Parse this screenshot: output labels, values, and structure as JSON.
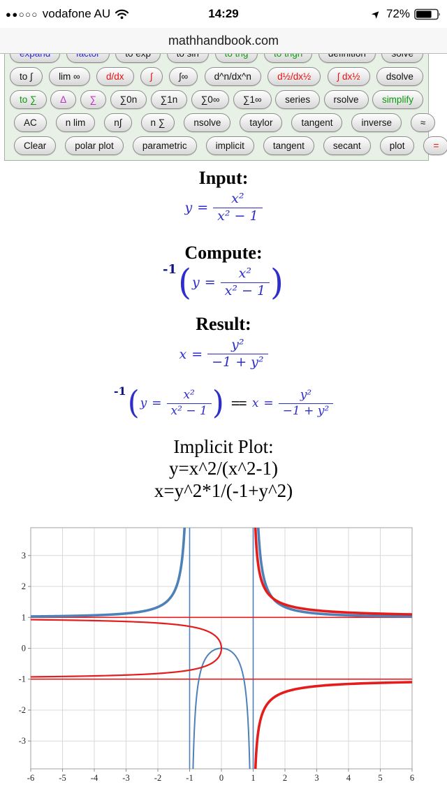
{
  "status_bar": {
    "signal_dots": "••ooo",
    "carrier": "vodafone AU",
    "time": "14:29",
    "battery_percent": "72%",
    "icons": {
      "wifi": "wifi-icon",
      "location": "location-arrow-icon",
      "battery": "battery-icon"
    }
  },
  "url_bar": {
    "title": "mathhandbook.com"
  },
  "toolbar": {
    "rows": [
      {
        "justify": "spread",
        "buttons": [
          {
            "label": "expand",
            "color": "blue"
          },
          {
            "label": "factor",
            "color": "blue"
          },
          {
            "label": "to exp",
            "color": "black"
          },
          {
            "label": "to sin",
            "color": "black"
          },
          {
            "label": "to trig",
            "color": "green"
          },
          {
            "label": "to trigh",
            "color": "green"
          },
          {
            "label": "definition",
            "color": "black"
          },
          {
            "label": "solve",
            "color": "black"
          }
        ]
      },
      {
        "justify": "spread",
        "buttons": [
          {
            "label": "to ∫",
            "color": "black"
          },
          {
            "label": "lim ∞",
            "color": "black"
          },
          {
            "label": "d/dx",
            "color": "red"
          },
          {
            "label": "∫",
            "color": "red"
          },
          {
            "label": "∫∞",
            "color": "black"
          },
          {
            "label": "d^n/dx^n",
            "color": "black"
          },
          {
            "label": "d½/dx½",
            "color": "red"
          },
          {
            "label": "∫ dx½",
            "color": "red"
          },
          {
            "label": "dsolve",
            "color": "black"
          }
        ]
      },
      {
        "justify": "spread",
        "buttons": [
          {
            "label": "to ∑",
            "color": "green"
          },
          {
            "label": "Δ",
            "color": "magenta"
          },
          {
            "label": "∑",
            "color": "magenta"
          },
          {
            "label": "∑0n",
            "color": "black"
          },
          {
            "label": "∑1n",
            "color": "black"
          },
          {
            "label": "∑0∞",
            "color": "black"
          },
          {
            "label": "∑1∞",
            "color": "black"
          },
          {
            "label": "series",
            "color": "black"
          },
          {
            "label": "rsolve",
            "color": "black"
          },
          {
            "label": "simplify",
            "color": "green"
          }
        ]
      },
      {
        "justify": "packed",
        "buttons": [
          {
            "label": "AC",
            "color": "black"
          },
          {
            "label": "n lim",
            "color": "black"
          },
          {
            "label": "n∫",
            "color": "black"
          },
          {
            "label": "n ∑",
            "color": "black"
          },
          {
            "label": "nsolve",
            "color": "black"
          },
          {
            "label": "taylor",
            "color": "black"
          },
          {
            "label": "tangent",
            "color": "black"
          },
          {
            "label": "inverse",
            "color": "black"
          },
          {
            "label": "≈",
            "color": "black"
          }
        ]
      },
      {
        "justify": "packed",
        "buttons": [
          {
            "label": "Clear",
            "color": "black"
          },
          {
            "label": "polar plot",
            "color": "black"
          },
          {
            "label": "parametric",
            "color": "black"
          },
          {
            "label": "implicit",
            "color": "black"
          },
          {
            "label": "tangent",
            "color": "black"
          },
          {
            "label": "secant",
            "color": "black"
          },
          {
            "label": "plot",
            "color": "black"
          },
          {
            "label": "=",
            "color": "red"
          }
        ]
      }
    ]
  },
  "math": {
    "equals": "=",
    "paren_open": "(",
    "paren_close": ")"
  },
  "sections": {
    "input": {
      "heading": "Input:",
      "formula": {
        "lhs": "y",
        "num": "x²",
        "den": "x² − 1"
      }
    },
    "compute": {
      "heading": "Compute:",
      "prefix": "-1",
      "formula": {
        "lhs": "y",
        "num": "x²",
        "den": "x² − 1"
      }
    },
    "result": {
      "heading": "Result:",
      "formula": {
        "lhs": "x",
        "num": "y²",
        "den": "−1 + y²"
      }
    },
    "combined": {
      "prefix": "-1",
      "eq": "==",
      "left": {
        "lhs": "y",
        "num": "x²",
        "den": "x² − 1"
      },
      "right": {
        "lhs": "x",
        "num": "y²",
        "den": "−1 + y²"
      }
    },
    "implicit_plot": {
      "heading": "Implicit Plot:",
      "equation1": "y=x^2/(x^2-1)",
      "equation2": "x=y^2*1/(-1+y^2)"
    }
  },
  "chart_data": {
    "type": "line",
    "title": "",
    "xlabel": "",
    "ylabel": "",
    "equations": [
      "y=x^2/(x^2-1)",
      "x=y^2*1/(-1+y^2)"
    ],
    "xlim": [
      -6,
      6
    ],
    "ylim": [
      -3.9,
      3.9
    ],
    "x_ticks": [
      -6,
      -5,
      -4,
      -3,
      -2,
      -1,
      0,
      1,
      2,
      3,
      4,
      5,
      6
    ],
    "y_ticks": [
      -3,
      -2,
      -1,
      0,
      1,
      2,
      3
    ],
    "grid": true,
    "colors": {
      "blue_curve": "#4e81b8",
      "red_curve": "#e51c1c",
      "grid": "#d8d8d8",
      "frame": "#b0b0b0",
      "tick": "#888888"
    },
    "key_points": {
      "curves_touch_origin": [
        0,
        0
      ]
    },
    "asymptote_lines": [
      {
        "orient": "v",
        "at": -1,
        "color": "#4e81b8",
        "width": 1.6
      },
      {
        "orient": "v",
        "at": 1,
        "color": "#4e81b8",
        "width": 1.6
      },
      {
        "orient": "h",
        "at": 1,
        "color": "#e51c1c",
        "width": 1.6
      },
      {
        "orient": "h",
        "at": -1,
        "color": "#e51c1c",
        "width": 1.6
      }
    ],
    "series": [
      {
        "name": "y=x^2/(x^2-1) left branch",
        "orient": "y_of_x",
        "expr": "t*t/(t*t-1)",
        "from": -6,
        "to": -1.1456,
        "color": "#4e81b8",
        "width": 3.6
      },
      {
        "name": "y=x^2/(x^2-1) middle branch",
        "orient": "y_of_x",
        "expr": "t*t/(t*t-1)",
        "from": -0.8987,
        "to": 0.8987,
        "color": "#4e81b8",
        "width": 2
      },
      {
        "name": "y=x^2/(x^2-1) right branch",
        "orient": "y_of_x",
        "expr": "t*t/(t*t-1)",
        "from": 1.1456,
        "to": 6,
        "color": "#4e81b8",
        "width": 3.6
      },
      {
        "name": "x=y^2/(-1+y^2) middle branch",
        "orient": "x_of_y",
        "expr": "t*t/(t*t-1)",
        "from": -0.929,
        "to": 0.929,
        "color": "#e51c1c",
        "width": 2.2
      },
      {
        "name": "x=y^2/(-1+y^2) upper branch",
        "orient": "x_of_y",
        "expr": "t*t/(t*t-1)",
        "from": 1.0902,
        "to": 4.2,
        "color": "#e51c1c",
        "width": 3.6
      },
      {
        "name": "x=y^2/(-1+y^2) lower branch",
        "orient": "x_of_y",
        "expr": "t*t/(t*t-1)",
        "from": -4.2,
        "to": -1.0902,
        "color": "#e51c1c",
        "width": 3.6
      }
    ]
  }
}
